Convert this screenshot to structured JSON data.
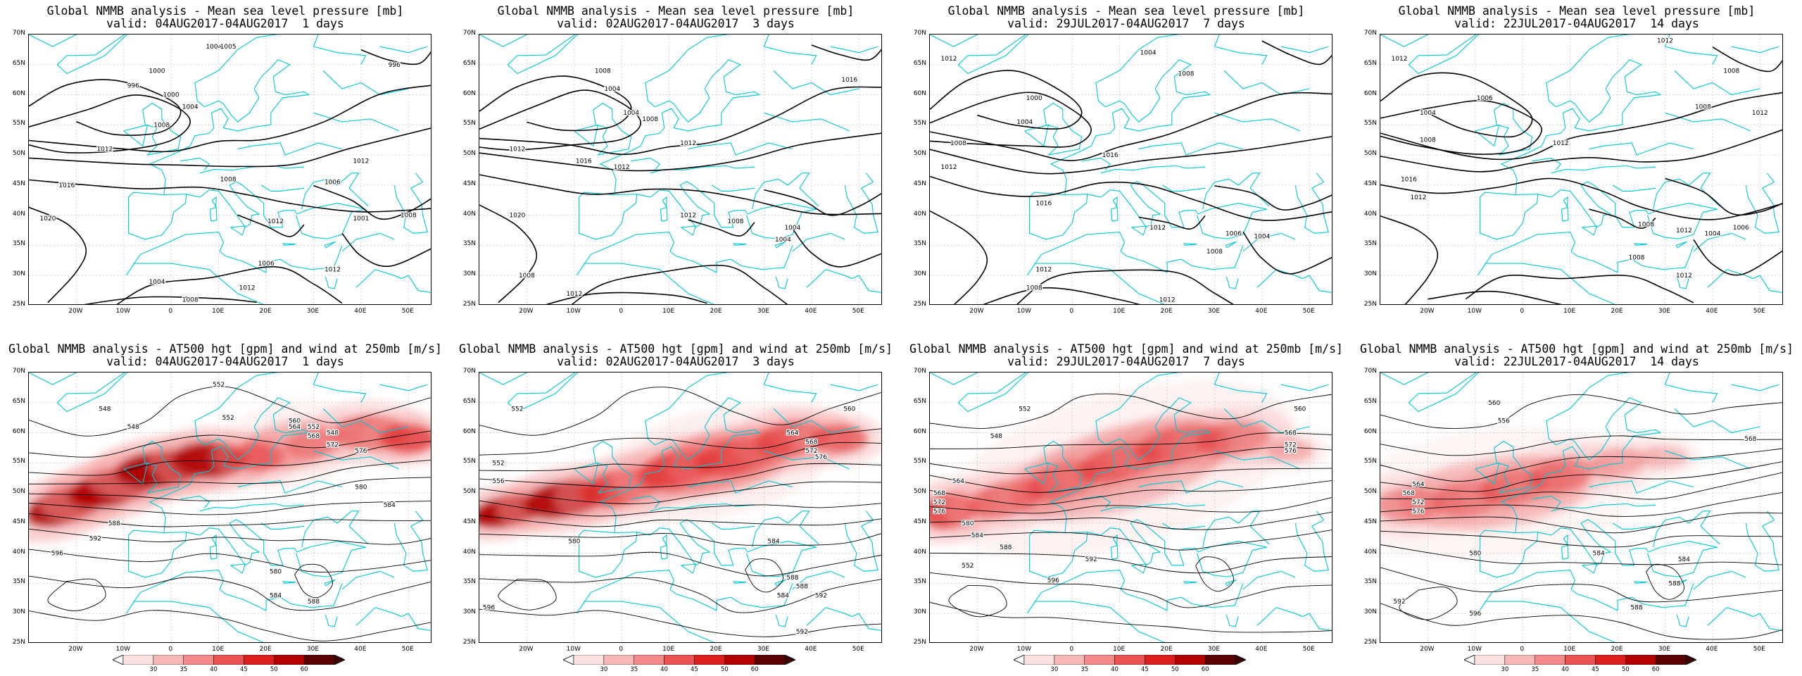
{
  "y_ticks": [
    "70N",
    "65N",
    "60N",
    "55N",
    "50N",
    "45N",
    "40N",
    "35N",
    "30N",
    "25N"
  ],
  "x_ticks": [
    "20W",
    "10W",
    "0",
    "10E",
    "20E",
    "30E",
    "40E",
    "50E"
  ],
  "mslp_title": "Global NMMB analysis - Mean sea level pressure [mb]",
  "z500_title": "Global NMMB analysis - AT500 hgt [gpm] and wind at 250mb [m/s]",
  "colorbar": {
    "ticks": [
      "30",
      "35",
      "40",
      "45",
      "50",
      "60"
    ],
    "colors": [
      "#fde0e0",
      "#f9b8b8",
      "#f48a8a",
      "#ec5454",
      "#dc1e1e",
      "#b40000",
      "#5a0000"
    ]
  },
  "colors": {
    "coast": "#00c8d2",
    "contour": "#000000",
    "jet": "#e00000"
  },
  "panels": [
    {
      "id": "mslp-1d",
      "kind": "mslp",
      "valid": "valid: 04AUG2017-04AUG2017  1 days",
      "contour_labels": [
        "1004",
        "1005",
        "1000",
        "996",
        "1000",
        "1004",
        "1008",
        "1012",
        "1016",
        "1020",
        "1008",
        "1012",
        "1006",
        "1012",
        "1001",
        "1008",
        "1012",
        "996",
        "1006",
        "1012",
        "1004",
        "1008"
      ]
    },
    {
      "id": "mslp-3d",
      "kind": "mslp",
      "valid": "valid: 02AUG2017-04AUG2017  3 days",
      "contour_labels": [
        "1008",
        "1004",
        "1008",
        "1004",
        "1012",
        "1016",
        "1020",
        "1012",
        "1012",
        "1008",
        "1004",
        "1016",
        "1012",
        "1008",
        "1012",
        "1004"
      ]
    },
    {
      "id": "mslp-7d",
      "kind": "mslp",
      "valid": "valid: 29JUL2017-04AUG2017  7 days",
      "contour_labels": [
        "1012",
        "1004",
        "1008",
        "1000",
        "1004",
        "1008",
        "1012",
        "1016",
        "1016",
        "1012",
        "1008",
        "1012",
        "1006",
        "1004",
        "1008",
        "1012"
      ]
    },
    {
      "id": "mslp-14d",
      "kind": "mslp",
      "valid": "valid: 22JUL2017-04AUG2017  14 days",
      "contour_labels": [
        "1012",
        "1012",
        "1008",
        "1006",
        "1004",
        "1008",
        "1012",
        "1016",
        "1012",
        "1008",
        "1012",
        "1008",
        "1004",
        "1012",
        "1006",
        "1008",
        "1012"
      ]
    },
    {
      "id": "z500-1d",
      "kind": "z500",
      "valid": "valid: 04AUG2017-04AUG2017  1 days",
      "contour_labels": [
        "552",
        "548",
        "548",
        "552",
        "560",
        "564",
        "568",
        "572",
        "576",
        "580",
        "584",
        "588",
        "592",
        "596",
        "584",
        "580",
        "588",
        "548",
        "552"
      ]
    },
    {
      "id": "z500-3d",
      "kind": "z500",
      "valid": "valid: 02AUG2017-04AUG2017  3 days",
      "contour_labels": [
        "552",
        "560",
        "552",
        "556",
        "564",
        "568",
        "572",
        "576",
        "580",
        "584",
        "588",
        "592",
        "588",
        "584",
        "592",
        "596"
      ]
    },
    {
      "id": "z500-7d",
      "kind": "z500",
      "valid": "valid: 29JUL2017-04AUG2017  7 days",
      "contour_labels": [
        "552",
        "548",
        "560",
        "564",
        "568",
        "572",
        "576",
        "580",
        "584",
        "588",
        "592",
        "552",
        "596",
        "568",
        "572",
        "576"
      ]
    },
    {
      "id": "z500-14d",
      "kind": "z500",
      "valid": "valid: 22JUL2017-04AUG2017  14 days",
      "contour_labels": [
        "560",
        "556",
        "564",
        "568",
        "572",
        "576",
        "580",
        "584",
        "588",
        "592",
        "596",
        "584",
        "588",
        "568"
      ]
    }
  ]
}
